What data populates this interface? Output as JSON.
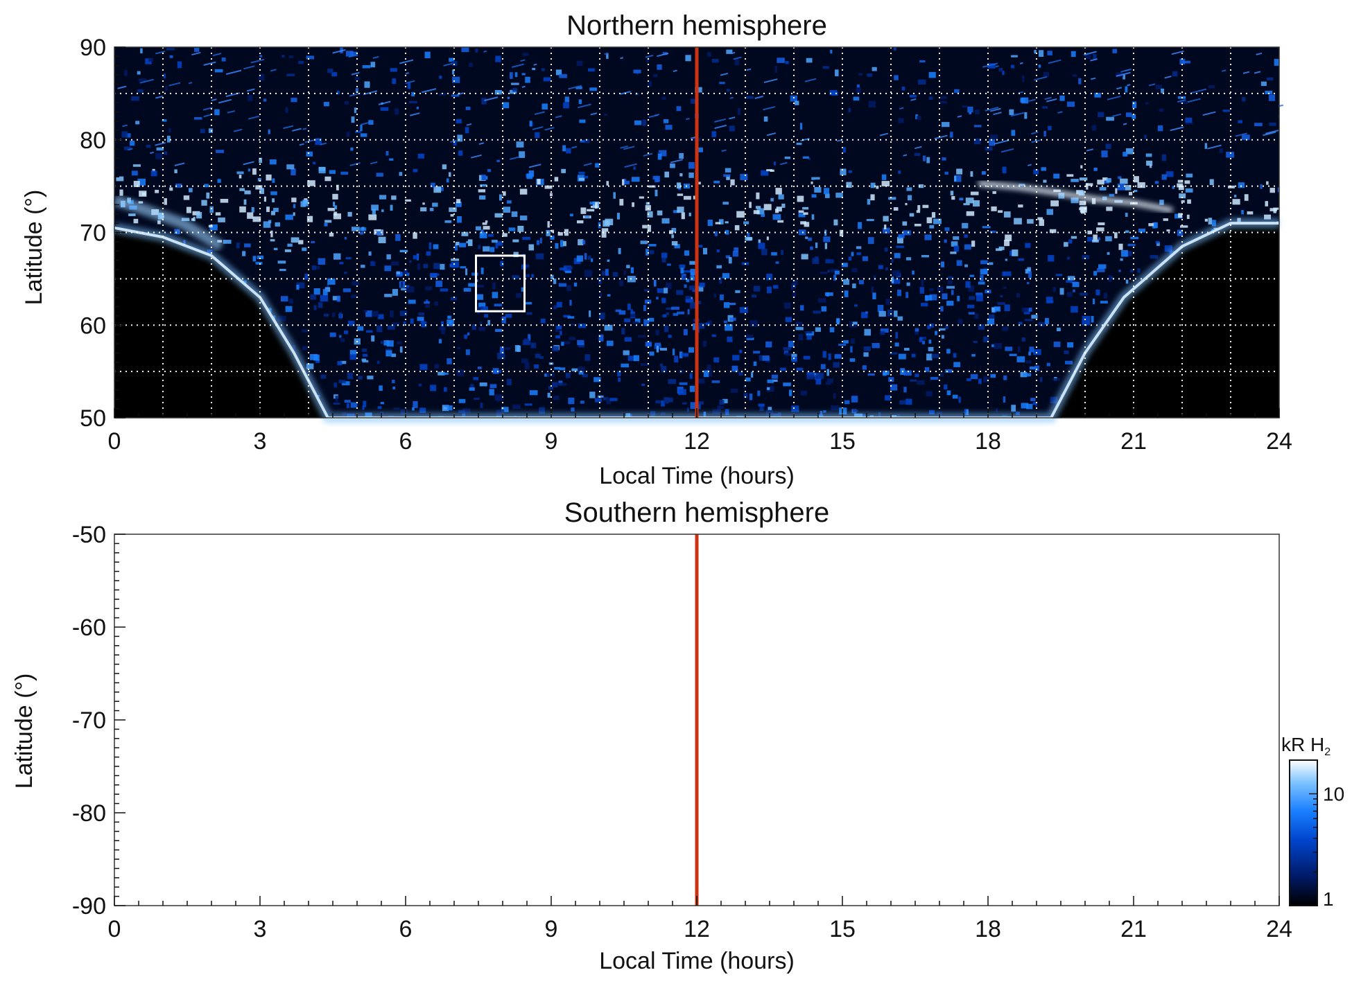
{
  "chart_data": [
    {
      "type": "heatmap",
      "title": "Northern hemisphere",
      "xlabel": "Local Time (hours)",
      "ylabel": "Latitude (°)",
      "xlim": [
        0,
        24
      ],
      "ylim": [
        50,
        90
      ],
      "xticks": [
        0,
        3,
        6,
        9,
        12,
        15,
        18,
        21,
        24
      ],
      "yticks": [
        50,
        60,
        70,
        80,
        90
      ],
      "grid": true,
      "grid_x_hours": [
        1,
        2,
        3,
        4,
        5,
        6,
        7,
        8,
        9,
        10,
        11,
        13,
        14,
        15,
        16,
        17,
        18,
        19,
        20,
        21,
        22,
        23
      ],
      "grid_y_lat": [
        55,
        60,
        65,
        70,
        75,
        80,
        85
      ],
      "background_color": "#000000",
      "noon_line": {
        "x": 12,
        "color": "#cc3311"
      },
      "highlight_box": {
        "x_range": [
          7.45,
          8.45
        ],
        "y_range": [
          61.5,
          67.5
        ],
        "color": "#ffffff"
      },
      "observed_region": {
        "description_values": "emission brightest near latitude 70–75° on dawn and dusk flanks",
        "boundary": [
          {
            "x": 0.0,
            "y": 70.5
          },
          {
            "x": 1.0,
            "y": 69.5
          },
          {
            "x": 2.0,
            "y": 67.5
          },
          {
            "x": 3.0,
            "y": 63.0
          },
          {
            "x": 3.7,
            "y": 57.0
          },
          {
            "x": 4.4,
            "y": 50.0
          },
          {
            "x": 19.3,
            "y": 50.0
          },
          {
            "x": 20.0,
            "y": 57.0
          },
          {
            "x": 20.8,
            "y": 63.0
          },
          {
            "x": 22.0,
            "y": 68.5
          },
          {
            "x": 23.0,
            "y": 71.0
          },
          {
            "x": 24.0,
            "y": 71.0
          }
        ]
      }
    },
    {
      "type": "heatmap",
      "title": "Southern hemisphere",
      "xlabel": "Local Time (hours)",
      "ylabel": "Latitude (°)",
      "xlim": [
        0,
        24
      ],
      "ylim": [
        -90,
        -50
      ],
      "xticks": [
        0,
        3,
        6,
        9,
        12,
        15,
        18,
        21,
        24
      ],
      "yticks": [
        -50,
        -60,
        -70,
        -80,
        -90
      ],
      "grid": false,
      "background_color": "#ffffff",
      "noon_line": {
        "x": 12,
        "color": "#cc3311"
      }
    }
  ],
  "colorbar": {
    "title": "kR H",
    "title_subscript": "2",
    "scale": "log",
    "range": [
      1,
      20
    ],
    "ticks": [
      {
        "value": 1,
        "label": "1"
      },
      {
        "value": 10,
        "label": "10"
      }
    ],
    "colors": [
      "#000000",
      "#001a66",
      "#0044cc",
      "#1a7fff",
      "#80c4ff",
      "#ffffff"
    ]
  },
  "labels": {
    "north_title": "Northern hemisphere",
    "south_title": "Southern hemisphere",
    "xlabel": "Local Time (hours)",
    "ylabel": "Latitude (°)"
  }
}
